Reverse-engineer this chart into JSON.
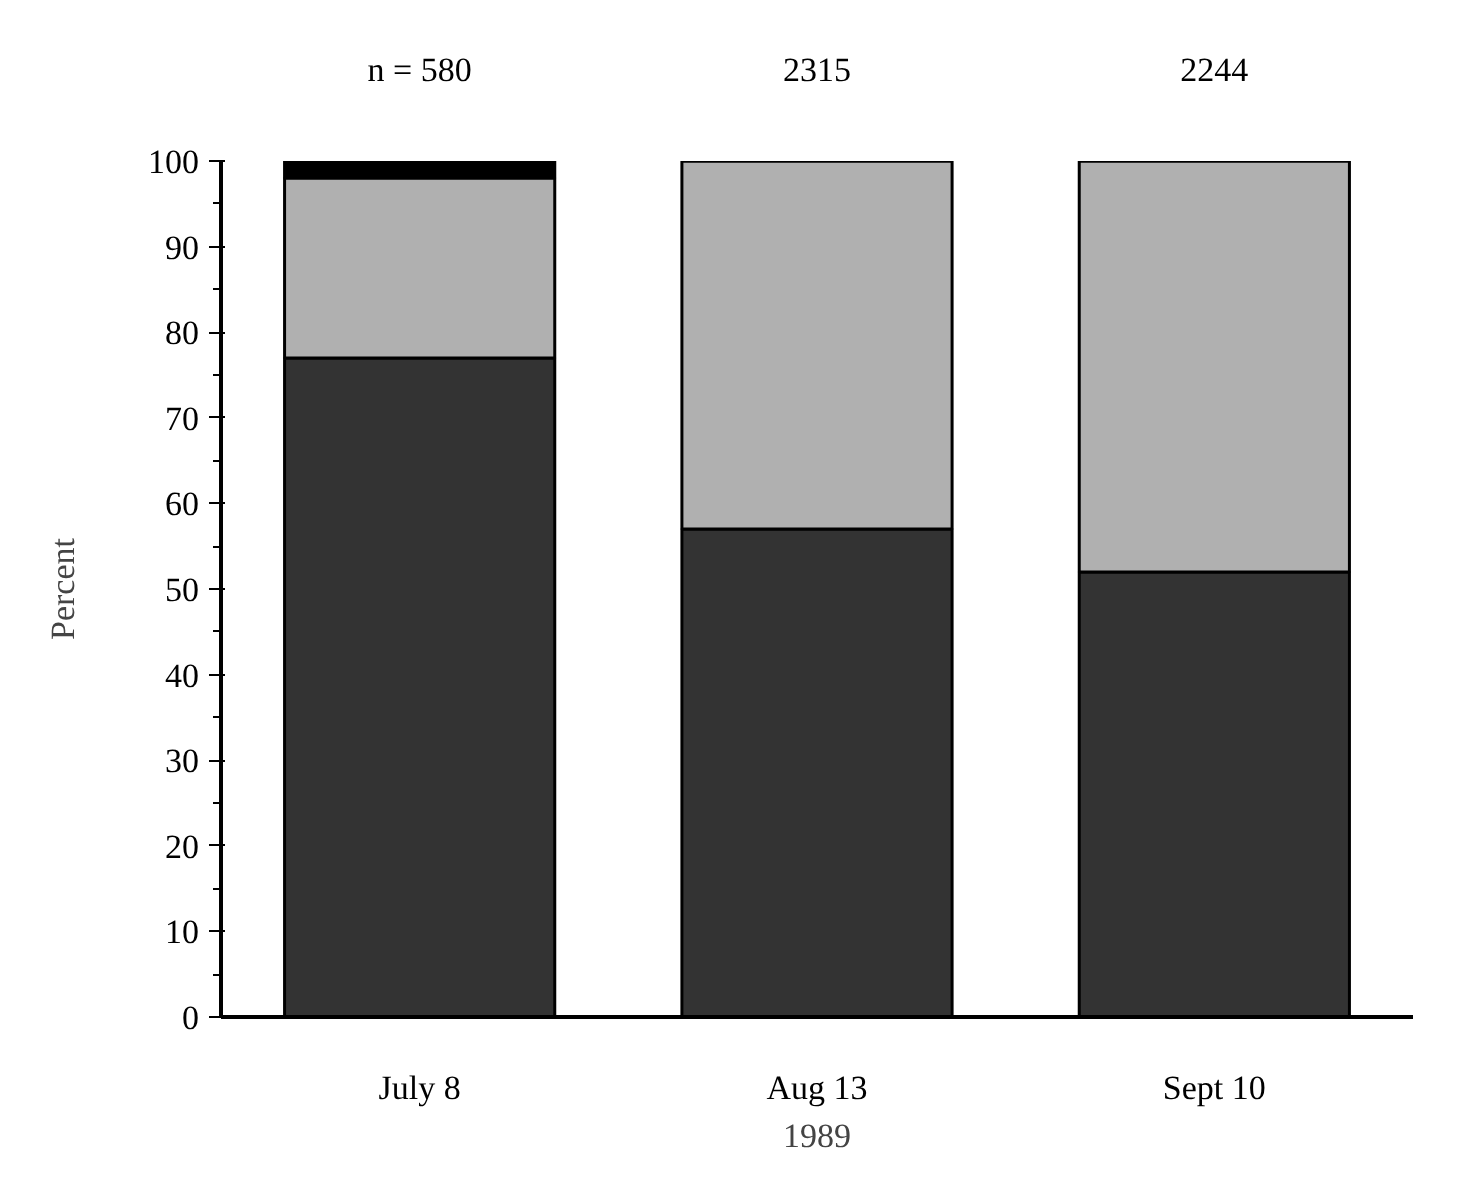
{
  "chart_data": {
    "type": "bar",
    "stacked": true,
    "xlabel": "1989",
    "ylabel": "Percent",
    "categories": [
      "July 8",
      "Aug 13",
      "Sept 10"
    ],
    "series": [
      {
        "color": "#333333",
        "values": [
          77,
          57,
          52
        ]
      },
      {
        "color": "#b0b0b0",
        "values": [
          21,
          43,
          48
        ]
      },
      {
        "color": "#000000",
        "values": [
          2,
          0,
          0
        ]
      }
    ],
    "ylim": [
      0,
      100
    ],
    "yticks": [
      0,
      10,
      20,
      30,
      40,
      50,
      60,
      70,
      80,
      90,
      100
    ],
    "annotations": [
      "n = 580",
      "2315",
      "2244"
    ]
  }
}
